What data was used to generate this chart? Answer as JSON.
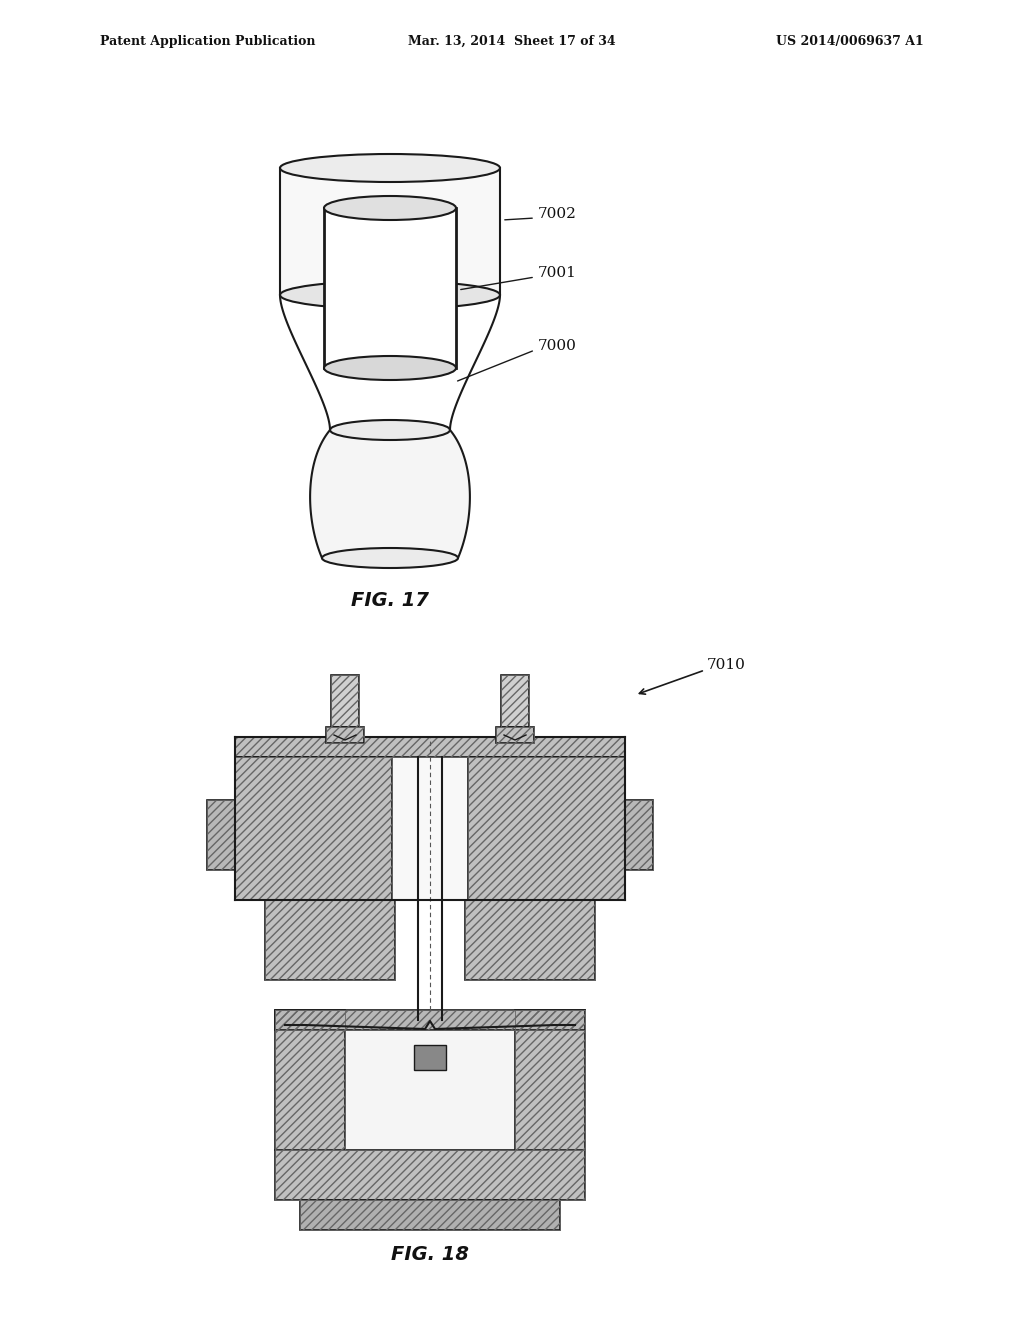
{
  "bg_color": "#ffffff",
  "header_left": "Patent Application Publication",
  "header_mid": "Mar. 13, 2014  Sheet 17 of 34",
  "header_right": "US 2014/0069637 A1",
  "fig17_label": "FIG. 17",
  "fig18_label": "FIG. 18",
  "label_7000": "7000",
  "label_7001": "7001",
  "label_7002": "7002",
  "label_7010": "7010",
  "line_color": "#1a1a1a",
  "hatch_color": "#333333",
  "fill_light": "#f0f0f0",
  "fill_white": "#ffffff"
}
